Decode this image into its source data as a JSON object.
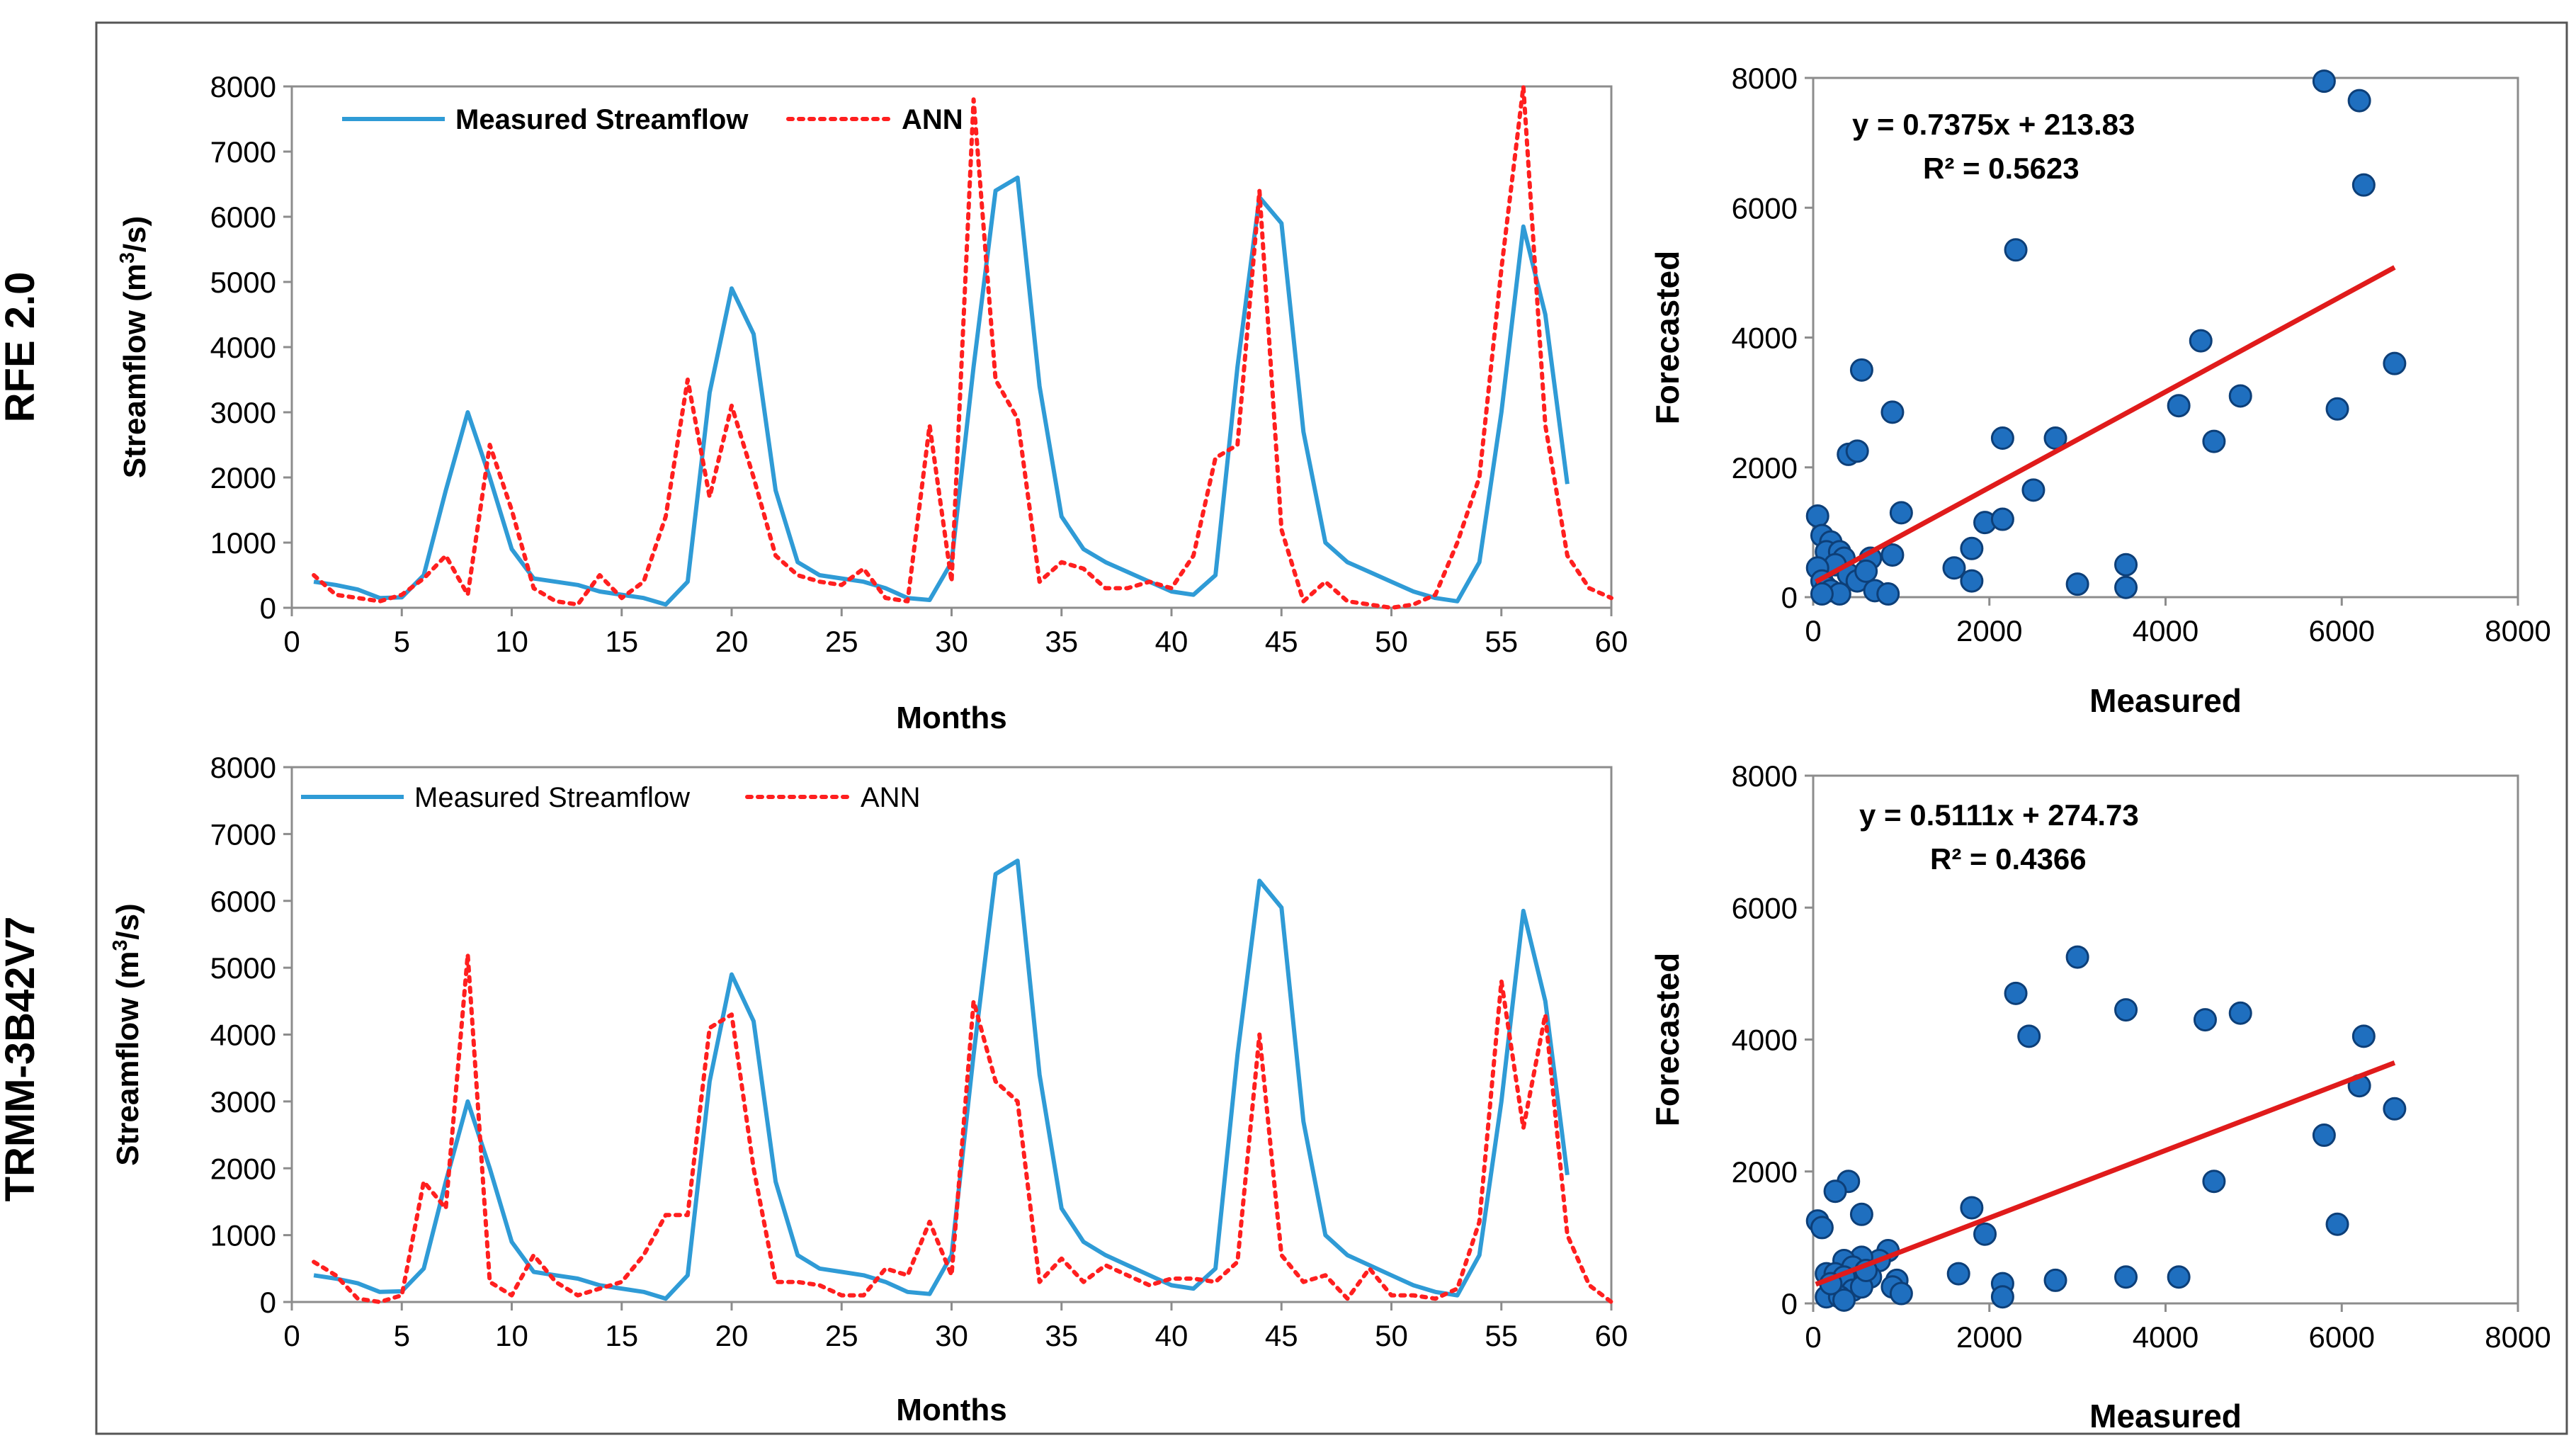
{
  "row_labels": [
    "RFE 2.0",
    "TRMM-3B42V7"
  ],
  "colors": {
    "measured": "#2f9bd6",
    "ann": "#ff1f1f",
    "fit": "#e01b1b",
    "point_fill": "#1f6fbf",
    "point_stroke": "#0d3f78",
    "frame": "#555555"
  },
  "chart_data": [
    {
      "type": "line",
      "id": "ts_rfe",
      "xlabel": "Months",
      "ylabel_base": "Streamflow (m",
      "ylabel_sup": "3",
      "ylabel_tail": "/s)",
      "xlim": [
        0,
        60
      ],
      "ylim": [
        0,
        8000
      ],
      "xticks": [
        0,
        5,
        10,
        15,
        20,
        25,
        30,
        35,
        40,
        45,
        50,
        55,
        60
      ],
      "yticks": [
        0,
        1000,
        2000,
        3000,
        4000,
        5000,
        6000,
        7000,
        8000
      ],
      "legend": [
        "Measured Streamflow",
        "ANN"
      ],
      "series": [
        {
          "name": "Measured Streamflow",
          "style": "solid",
          "x": [
            1,
            2,
            3,
            4,
            5,
            6,
            7,
            8,
            9,
            10,
            11,
            12,
            13,
            14,
            15,
            16,
            17,
            18,
            19,
            20,
            21,
            22,
            23,
            24,
            25,
            26,
            27,
            28,
            29,
            30,
            31,
            32,
            33,
            34,
            35,
            36,
            37,
            38,
            39,
            40,
            41,
            42,
            43,
            44,
            45,
            46,
            47,
            48,
            49,
            50,
            51,
            52,
            53,
            54,
            55,
            56,
            57,
            58
          ],
          "values": [
            400,
            350,
            280,
            150,
            160,
            500,
            1800,
            3000,
            2000,
            900,
            450,
            400,
            350,
            250,
            200,
            150,
            50,
            400,
            3300,
            4900,
            4200,
            1800,
            700,
            500,
            450,
            400,
            300,
            150,
            120,
            700,
            3700,
            6400,
            6600,
            3400,
            1400,
            900,
            700,
            550,
            400,
            250,
            200,
            500,
            3700,
            6300,
            5900,
            2700,
            1000,
            700,
            550,
            400,
            250,
            150,
            100,
            700,
            3000,
            5850,
            4500,
            1900
          ]
        },
        {
          "name": "ANN",
          "style": "dotted",
          "x": [
            1,
            2,
            3,
            4,
            5,
            6,
            7,
            8,
            9,
            10,
            11,
            12,
            13,
            14,
            15,
            16,
            17,
            18,
            19,
            20,
            21,
            22,
            23,
            24,
            25,
            26,
            27,
            28,
            29,
            30,
            31,
            32,
            33,
            34,
            35,
            36,
            37,
            38,
            39,
            40,
            41,
            42,
            43,
            44,
            45,
            46,
            47,
            48,
            49,
            50,
            51,
            52,
            53,
            54,
            55,
            56,
            57,
            58,
            59,
            60
          ],
          "values": [
            500,
            200,
            150,
            100,
            200,
            450,
            800,
            200,
            2500,
            1500,
            300,
            100,
            50,
            500,
            150,
            400,
            1400,
            3500,
            1700,
            3100,
            2000,
            800,
            500,
            400,
            350,
            600,
            150,
            100,
            2800,
            400,
            7800,
            3500,
            2900,
            400,
            700,
            600,
            300,
            300,
            400,
            300,
            800,
            2300,
            2500,
            6400,
            1200,
            100,
            400,
            100,
            50,
            0,
            50,
            200,
            1000,
            2000,
            5200,
            8000,
            2800,
            800,
            300,
            150
          ]
        }
      ]
    },
    {
      "type": "scatter",
      "id": "sc_rfe",
      "xlabel": "Measured",
      "ylabel": "Forecasted",
      "xlim": [
        0,
        8000
      ],
      "ylim": [
        0,
        8000
      ],
      "xticks": [
        0,
        2000,
        4000,
        6000,
        8000
      ],
      "yticks": [
        0,
        2000,
        4000,
        6000,
        8000
      ],
      "equation": "y = 0.7375x + 213.83",
      "r2": "R² = 0.5623",
      "fit": {
        "slope": 0.7375,
        "intercept": 213.83,
        "x_range": [
          30,
          6600
        ]
      },
      "points": [
        [
          5800,
          7950
        ],
        [
          6200,
          7650
        ],
        [
          6250,
          6350
        ],
        [
          2300,
          5350
        ],
        [
          4400,
          3950
        ],
        [
          6600,
          3600
        ],
        [
          550,
          3500
        ],
        [
          900,
          2850
        ],
        [
          5950,
          2900
        ],
        [
          4850,
          3100
        ],
        [
          4150,
          2950
        ],
        [
          4550,
          2400
        ],
        [
          2750,
          2450
        ],
        [
          2150,
          2450
        ],
        [
          400,
          2200
        ],
        [
          500,
          2250
        ],
        [
          2500,
          1650
        ],
        [
          1950,
          1150
        ],
        [
          2150,
          1200
        ],
        [
          1000,
          1300
        ],
        [
          50,
          1250
        ],
        [
          1800,
          750
        ],
        [
          1600,
          450
        ],
        [
          1800,
          250
        ],
        [
          3550,
          500
        ],
        [
          3550,
          150
        ],
        [
          3000,
          200
        ],
        [
          100,
          950
        ],
        [
          200,
          850
        ],
        [
          150,
          700
        ],
        [
          300,
          700
        ],
        [
          350,
          600
        ],
        [
          650,
          600
        ],
        [
          900,
          650
        ],
        [
          250,
          500
        ],
        [
          50,
          450
        ],
        [
          400,
          350
        ],
        [
          500,
          250
        ],
        [
          100,
          250
        ],
        [
          150,
          150
        ],
        [
          200,
          100
        ],
        [
          300,
          50
        ],
        [
          700,
          100
        ],
        [
          850,
          50
        ],
        [
          600,
          400
        ],
        [
          100,
          50
        ]
      ]
    },
    {
      "type": "line",
      "id": "ts_trmm",
      "xlabel": "Months",
      "ylabel_base": "Streamflow (m",
      "ylabel_sup": "3",
      "ylabel_tail": "/s)",
      "xlim": [
        0,
        60
      ],
      "ylim": [
        0,
        8000
      ],
      "xticks": [
        0,
        5,
        10,
        15,
        20,
        25,
        30,
        35,
        40,
        45,
        50,
        55,
        60
      ],
      "yticks": [
        0,
        1000,
        2000,
        3000,
        4000,
        5000,
        6000,
        7000,
        8000
      ],
      "legend": [
        "Measured Streamflow",
        "ANN"
      ],
      "series": [
        {
          "name": "Measured Streamflow",
          "style": "solid",
          "x": [
            1,
            2,
            3,
            4,
            5,
            6,
            7,
            8,
            9,
            10,
            11,
            12,
            13,
            14,
            15,
            16,
            17,
            18,
            19,
            20,
            21,
            22,
            23,
            24,
            25,
            26,
            27,
            28,
            29,
            30,
            31,
            32,
            33,
            34,
            35,
            36,
            37,
            38,
            39,
            40,
            41,
            42,
            43,
            44,
            45,
            46,
            47,
            48,
            49,
            50,
            51,
            52,
            53,
            54,
            55,
            56,
            57,
            58
          ],
          "values": [
            400,
            350,
            280,
            150,
            160,
            500,
            1800,
            3000,
            2000,
            900,
            450,
            400,
            350,
            250,
            200,
            150,
            50,
            400,
            3300,
            4900,
            4200,
            1800,
            700,
            500,
            450,
            400,
            300,
            150,
            120,
            700,
            3700,
            6400,
            6600,
            3400,
            1400,
            900,
            700,
            550,
            400,
            250,
            200,
            500,
            3700,
            6300,
            5900,
            2700,
            1000,
            700,
            550,
            400,
            250,
            150,
            100,
            700,
            3000,
            5850,
            4500,
            1900
          ]
        },
        {
          "name": "ANN",
          "style": "dotted",
          "x": [
            1,
            2,
            3,
            4,
            5,
            6,
            7,
            8,
            9,
            10,
            11,
            12,
            13,
            14,
            15,
            16,
            17,
            18,
            19,
            20,
            21,
            22,
            23,
            24,
            25,
            26,
            27,
            28,
            29,
            30,
            31,
            32,
            33,
            34,
            35,
            36,
            37,
            38,
            39,
            40,
            41,
            42,
            43,
            44,
            45,
            46,
            47,
            48,
            49,
            50,
            51,
            52,
            53,
            54,
            55,
            56,
            57,
            58,
            59,
            60
          ],
          "values": [
            600,
            400,
            50,
            0,
            100,
            1800,
            1400,
            5200,
            300,
            100,
            700,
            300,
            100,
            200,
            300,
            700,
            1300,
            1300,
            4100,
            4300,
            2000,
            300,
            300,
            250,
            100,
            100,
            500,
            400,
            1200,
            400,
            4500,
            3300,
            3000,
            300,
            650,
            300,
            550,
            400,
            250,
            350,
            350,
            300,
            600,
            4000,
            700,
            300,
            400,
            50,
            500,
            100,
            100,
            50,
            200,
            1200,
            4800,
            2600,
            4300,
            1000,
            250,
            0
          ]
        }
      ]
    },
    {
      "type": "scatter",
      "id": "sc_trmm",
      "xlabel": "Measured",
      "ylabel": "Forecasted",
      "xlim": [
        0,
        8000
      ],
      "ylim": [
        0,
        8000
      ],
      "xticks": [
        0,
        2000,
        4000,
        6000,
        8000
      ],
      "yticks": [
        0,
        2000,
        4000,
        6000,
        8000
      ],
      "equation": "y = 0.5111x + 274.73",
      "r2": "R² = 0.4366",
      "fit": {
        "slope": 0.5111,
        "intercept": 274.73,
        "x_range": [
          30,
          6600
        ]
      },
      "points": [
        [
          3000,
          5250
        ],
        [
          2300,
          4700
        ],
        [
          2450,
          4050
        ],
        [
          3550,
          4450
        ],
        [
          4450,
          4300
        ],
        [
          4850,
          4400
        ],
        [
          6250,
          4050
        ],
        [
          6200,
          3300
        ],
        [
          6600,
          2950
        ],
        [
          5800,
          2550
        ],
        [
          5950,
          1200
        ],
        [
          4550,
          1850
        ],
        [
          1800,
          1450
        ],
        [
          1950,
          1050
        ],
        [
          1650,
          450
        ],
        [
          2150,
          300
        ],
        [
          2150,
          100
        ],
        [
          2750,
          350
        ],
        [
          3550,
          400
        ],
        [
          4150,
          400
        ],
        [
          400,
          1850
        ],
        [
          250,
          1700
        ],
        [
          550,
          1350
        ],
        [
          50,
          1250
        ],
        [
          100,
          1150
        ],
        [
          850,
          800
        ],
        [
          750,
          650
        ],
        [
          550,
          700
        ],
        [
          350,
          650
        ],
        [
          450,
          550
        ],
        [
          150,
          450
        ],
        [
          250,
          450
        ],
        [
          350,
          400
        ],
        [
          650,
          400
        ],
        [
          950,
          350
        ],
        [
          900,
          250
        ],
        [
          1000,
          150
        ],
        [
          450,
          200
        ],
        [
          550,
          250
        ],
        [
          150,
          100
        ],
        [
          300,
          100
        ],
        [
          350,
          50
        ],
        [
          200,
          300
        ],
        [
          600,
          500
        ]
      ]
    }
  ]
}
